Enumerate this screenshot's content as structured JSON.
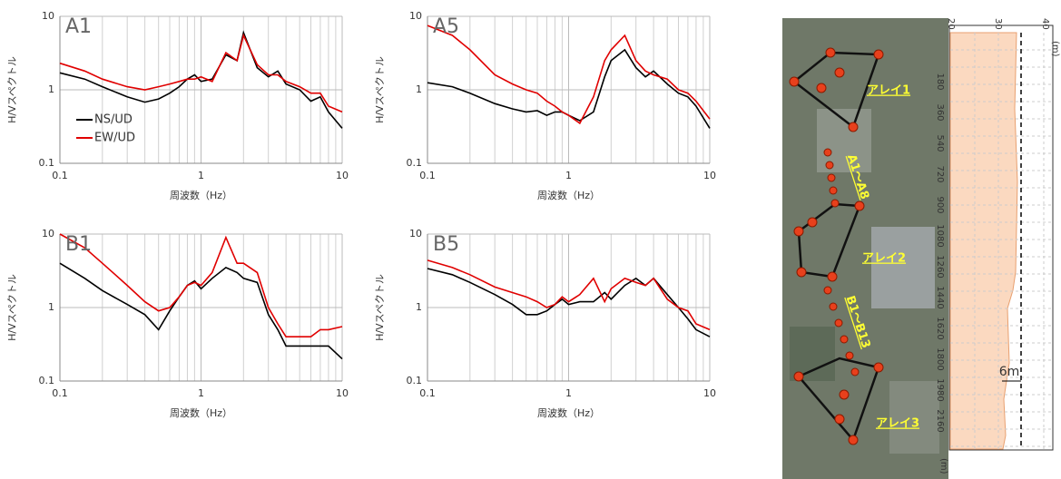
{
  "chart_data": [
    {
      "type": "line",
      "annotation": "A1",
      "xlabel": "周波数（Hz）",
      "ylabel": "H/Vスペクトル",
      "log_x": true,
      "log_y": true,
      "grid": true,
      "minor_grid": true,
      "legend": "left",
      "xlim": [
        0.1,
        10
      ],
      "ylim": [
        0.1,
        10
      ],
      "xticks": [
        0.1,
        1,
        10
      ],
      "yticks": [
        0.1,
        1,
        10
      ],
      "x": [
        0.1,
        0.15,
        0.2,
        0.3,
        0.4,
        0.5,
        0.6,
        0.7,
        0.8,
        0.9,
        1,
        1.2,
        1.5,
        1.8,
        2,
        2.5,
        3,
        3.5,
        4,
        5,
        6,
        7,
        8,
        10
      ],
      "series": [
        {
          "name": "NS/UD",
          "color": "#000000",
          "values": [
            1.7,
            1.4,
            1.1,
            0.8,
            0.68,
            0.75,
            0.9,
            1.1,
            1.4,
            1.6,
            1.3,
            1.4,
            3.0,
            2.5,
            6.0,
            2.0,
            1.5,
            1.8,
            1.2,
            1.0,
            0.7,
            0.8,
            0.5,
            0.3
          ]
        },
        {
          "name": "EW/UD",
          "color": "#e00000",
          "values": [
            2.3,
            1.8,
            1.4,
            1.1,
            1.0,
            1.1,
            1.2,
            1.3,
            1.4,
            1.4,
            1.5,
            1.3,
            3.2,
            2.5,
            5.5,
            2.2,
            1.6,
            1.6,
            1.3,
            1.1,
            0.9,
            0.9,
            0.6,
            0.5
          ]
        }
      ]
    },
    {
      "type": "line",
      "annotation": "A5",
      "xlabel": "周波数（Hz）",
      "ylabel": "H/Vスペクトル",
      "log_x": true,
      "log_y": true,
      "grid": true,
      "minor_grid": true,
      "xlim": [
        0.1,
        10
      ],
      "ylim": [
        0.1,
        10
      ],
      "xticks": [
        0.1,
        1,
        10
      ],
      "yticks": [
        0.1,
        1,
        10
      ],
      "x": [
        0.1,
        0.15,
        0.2,
        0.3,
        0.4,
        0.5,
        0.6,
        0.7,
        0.8,
        0.9,
        1,
        1.2,
        1.5,
        1.8,
        2,
        2.5,
        3,
        3.5,
        4,
        5,
        6,
        7,
        8,
        10
      ],
      "series": [
        {
          "color": "#000000",
          "values": [
            1.25,
            1.1,
            0.9,
            0.65,
            0.55,
            0.5,
            0.52,
            0.45,
            0.5,
            0.5,
            0.45,
            0.38,
            0.5,
            1.5,
            2.5,
            3.5,
            2.0,
            1.5,
            1.8,
            1.2,
            0.9,
            0.8,
            0.6,
            0.3
          ]
        },
        {
          "color": "#e00000",
          "values": [
            7.5,
            5.5,
            3.5,
            1.6,
            1.2,
            1.0,
            0.9,
            0.7,
            0.6,
            0.5,
            0.45,
            0.35,
            0.8,
            2.5,
            3.5,
            5.5,
            2.5,
            1.8,
            1.6,
            1.4,
            1.0,
            0.9,
            0.7,
            0.4
          ]
        }
      ]
    },
    {
      "type": "line",
      "annotation": "B1",
      "xlabel": "周波数（Hz）",
      "ylabel": "H/Vスペクトル",
      "log_x": true,
      "log_y": true,
      "grid": true,
      "minor_grid": true,
      "xlim": [
        0.1,
        10
      ],
      "ylim": [
        0.1,
        10
      ],
      "xticks": [
        0.1,
        1,
        10
      ],
      "yticks": [
        0.1,
        1,
        10
      ],
      "x": [
        0.1,
        0.15,
        0.2,
        0.3,
        0.4,
        0.5,
        0.6,
        0.7,
        0.8,
        0.9,
        1,
        1.2,
        1.5,
        1.8,
        2,
        2.5,
        3,
        3.5,
        4,
        5,
        6,
        7,
        8,
        10
      ],
      "series": [
        {
          "color": "#000000",
          "values": [
            4.0,
            2.5,
            1.7,
            1.1,
            0.8,
            0.5,
            0.9,
            1.4,
            2.0,
            2.3,
            1.8,
            2.5,
            3.5,
            3.0,
            2.5,
            2.2,
            0.8,
            0.5,
            0.3,
            0.3,
            0.3,
            0.3,
            0.3,
            0.2
          ]
        },
        {
          "color": "#e00000",
          "values": [
            10,
            6.5,
            4.0,
            2.0,
            1.2,
            0.9,
            1.0,
            1.4,
            2.0,
            2.2,
            2.0,
            3.0,
            9.0,
            4.0,
            4.0,
            3.0,
            1.0,
            0.6,
            0.4,
            0.4,
            0.4,
            0.5,
            0.5,
            0.55
          ]
        }
      ]
    },
    {
      "type": "line",
      "annotation": "B5",
      "xlabel": "周波数（Hz）",
      "ylabel": "H/Vスペクトル",
      "log_x": true,
      "log_y": true,
      "grid": true,
      "minor_grid": true,
      "xlim": [
        0.1,
        10
      ],
      "ylim": [
        0.1,
        10
      ],
      "xticks": [
        0.1,
        1,
        10
      ],
      "yticks": [
        0.1,
        1,
        10
      ],
      "x": [
        0.1,
        0.15,
        0.2,
        0.3,
        0.4,
        0.5,
        0.6,
        0.7,
        0.8,
        0.9,
        1,
        1.2,
        1.5,
        1.8,
        2,
        2.5,
        3,
        3.5,
        4,
        5,
        6,
        7,
        8,
        10
      ],
      "series": [
        {
          "color": "#000000",
          "values": [
            3.4,
            2.8,
            2.2,
            1.5,
            1.1,
            0.8,
            0.8,
            0.9,
            1.1,
            1.3,
            1.1,
            1.2,
            1.2,
            1.6,
            1.3,
            2.0,
            2.5,
            2.0,
            2.5,
            1.5,
            1.0,
            0.7,
            0.5,
            0.4
          ]
        },
        {
          "color": "#e00000",
          "values": [
            4.4,
            3.5,
            2.8,
            1.9,
            1.6,
            1.4,
            1.2,
            1.0,
            1.1,
            1.4,
            1.2,
            1.5,
            2.5,
            1.2,
            1.8,
            2.5,
            2.2,
            2.0,
            2.5,
            1.3,
            1.0,
            0.9,
            0.6,
            0.5
          ]
        }
      ]
    }
  ],
  "map": {
    "labels": [
      "アレイ1",
      "アレイ2",
      "アレイ3"
    ],
    "groups": [
      "A1～A8",
      "B1～B13"
    ],
    "profile": {
      "top_ticks": [
        "20",
        "30",
        "40"
      ],
      "depth_ticks": [
        "180",
        "360",
        "540",
        "720",
        "900",
        "1080",
        "1260",
        "1440",
        "1620",
        "1800",
        "1980",
        "2160"
      ],
      "unit": "(m)",
      "gap": "6m"
    }
  }
}
